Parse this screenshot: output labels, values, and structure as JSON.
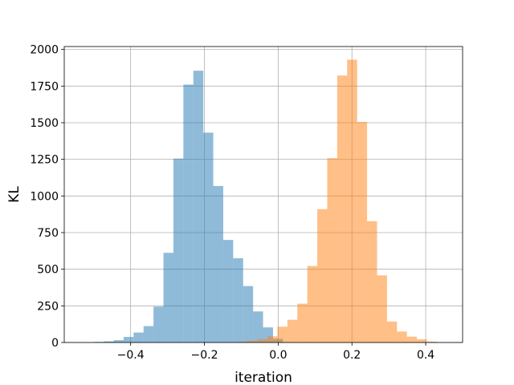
{
  "chart_data": {
    "type": "bar",
    "title": "",
    "xlabel": "iteration",
    "ylabel": "KL",
    "xlim": [
      -0.58,
      0.5
    ],
    "ylim": [
      0,
      2020
    ],
    "xticks": [
      -0.4,
      -0.2,
      0.0,
      0.2,
      0.4
    ],
    "xtick_labels": [
      "−0.4",
      "−0.2",
      "0.0",
      "0.2",
      "0.4"
    ],
    "yticks": [
      0,
      250,
      500,
      750,
      1000,
      1250,
      1500,
      1750,
      2000
    ],
    "ytick_labels": [
      "0",
      "250",
      "500",
      "750",
      "1000",
      "1250",
      "1500",
      "1750",
      "2000"
    ],
    "grid": true,
    "legend": "none",
    "series": [
      {
        "color": "#1f77b4",
        "opacity": 0.5,
        "bin_edges": [
          -0.5,
          -0.473,
          -0.446,
          -0.419,
          -0.392,
          -0.365,
          -0.338,
          -0.311,
          -0.284,
          -0.257,
          -0.23,
          -0.203,
          -0.176,
          -0.149,
          -0.122,
          -0.095,
          -0.068,
          -0.041,
          -0.014,
          0.013
        ],
        "counts": [
          4,
          8,
          16,
          38,
          68,
          112,
          245,
          612,
          1255,
          1760,
          1855,
          1432,
          1068,
          700,
          575,
          385,
          212,
          103,
          25
        ]
      },
      {
        "color": "#ff7f0e",
        "opacity": 0.5,
        "bin_edges": [
          -0.11,
          -0.083,
          -0.056,
          -0.029,
          -0.002,
          0.025,
          0.052,
          0.079,
          0.106,
          0.133,
          0.16,
          0.187,
          0.214,
          0.241,
          0.268,
          0.295,
          0.322,
          0.349,
          0.376,
          0.403,
          0.43
        ],
        "counts": [
          5,
          12,
          22,
          42,
          108,
          155,
          265,
          522,
          910,
          1258,
          1822,
          1930,
          1505,
          828,
          458,
          143,
          75,
          40,
          22,
          6
        ]
      }
    ]
  }
}
